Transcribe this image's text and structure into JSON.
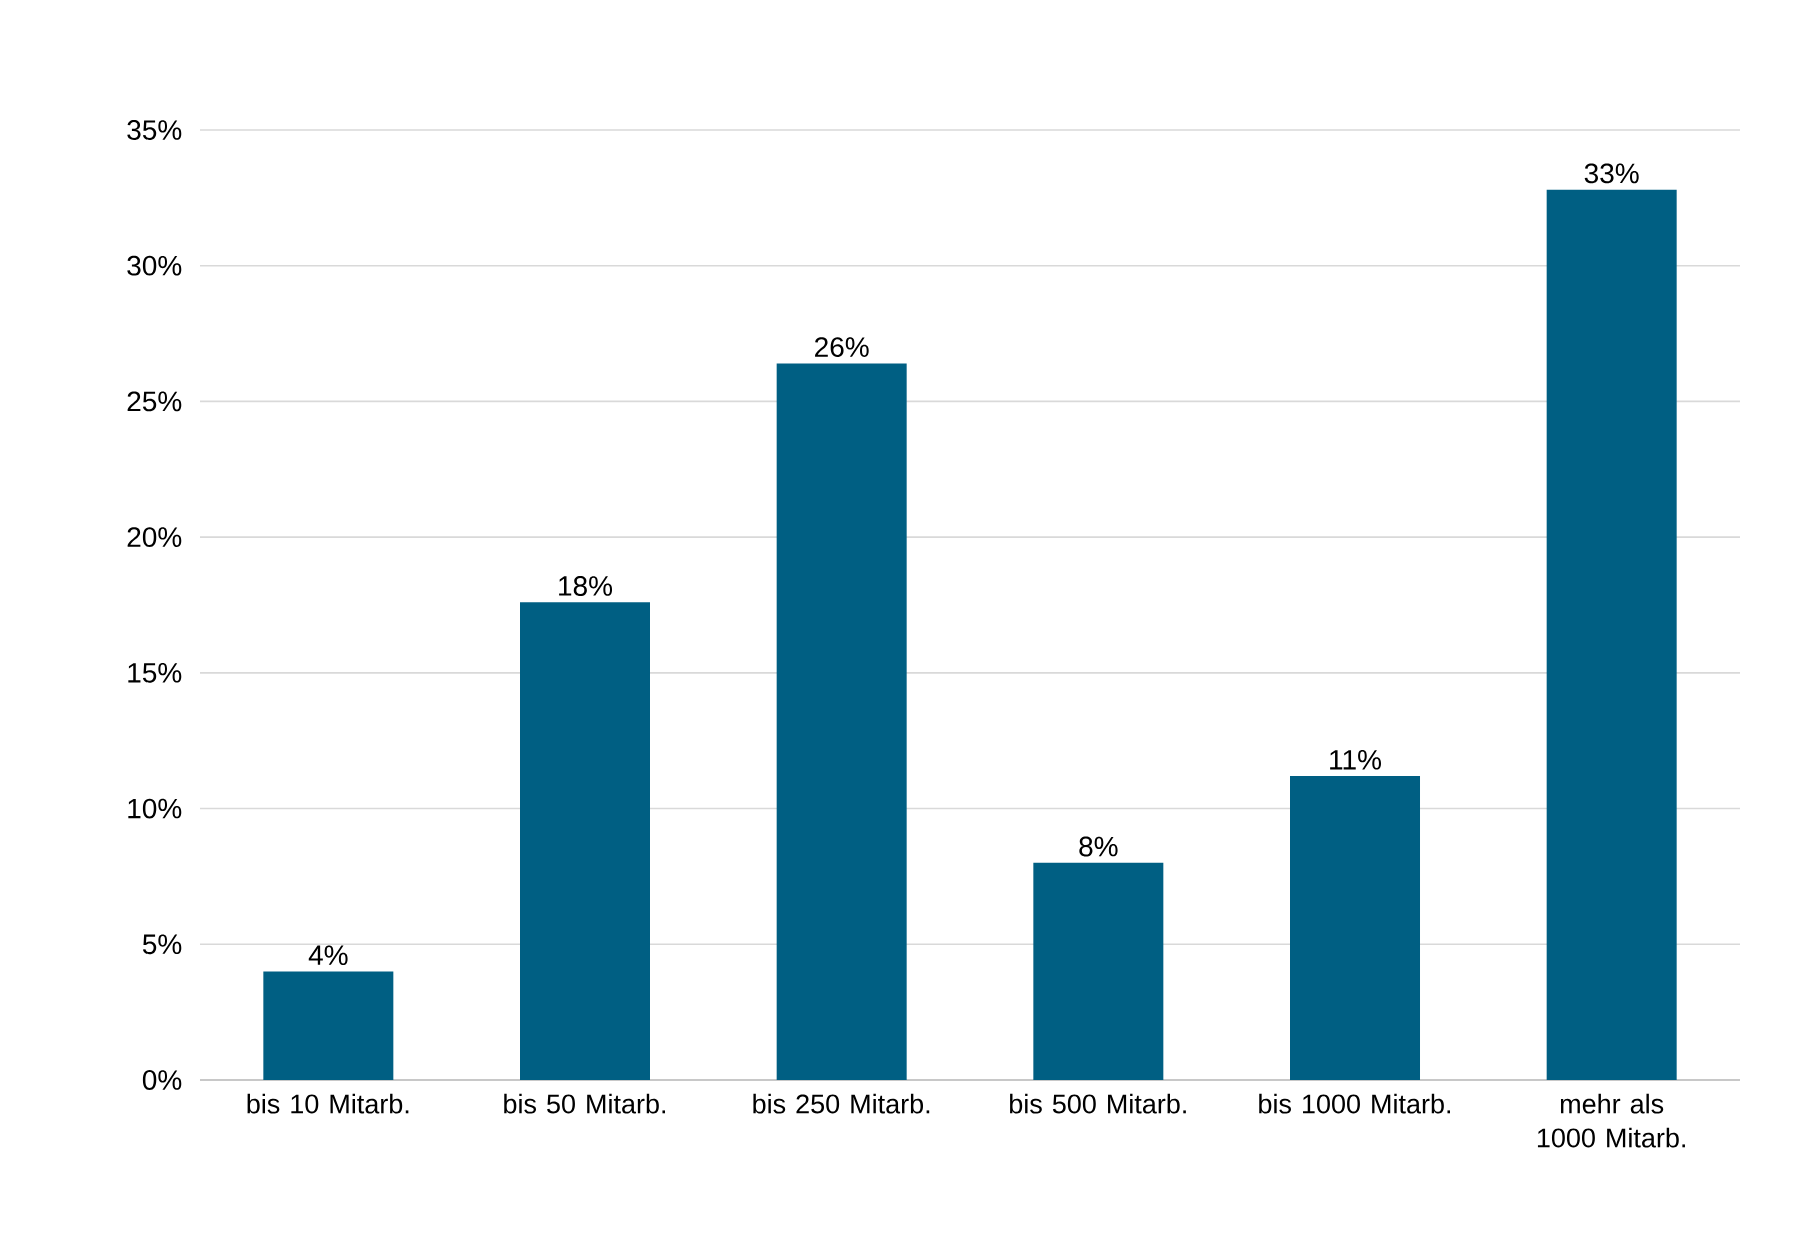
{
  "chart_data": {
    "type": "bar",
    "categories": [
      "bis 10 Mitarb.",
      "bis 50 Mitarb.",
      "bis 250 Mitarb.",
      "bis 500 Mitarb.",
      "bis 1000 Mitarb.",
      "mehr als 1000 Mitarb."
    ],
    "values": [
      4.0,
      17.6,
      26.4,
      8.0,
      11.2,
      32.8
    ],
    "value_labels": [
      "4%",
      "18%",
      "26%",
      "8%",
      "11%",
      "33%"
    ],
    "color": "#005f83",
    "ylim": [
      0,
      35
    ],
    "yticks": [
      {
        "value": 0,
        "label": "0%"
      },
      {
        "value": 5,
        "label": "5%"
      },
      {
        "value": 10,
        "label": "10%"
      },
      {
        "value": 15,
        "label": "15%"
      },
      {
        "value": 20,
        "label": "20%"
      },
      {
        "value": 25,
        "label": "25%"
      },
      {
        "value": 30,
        "label": "30%"
      },
      {
        "value": 35,
        "label": "35%"
      }
    ],
    "grid": "y"
  }
}
